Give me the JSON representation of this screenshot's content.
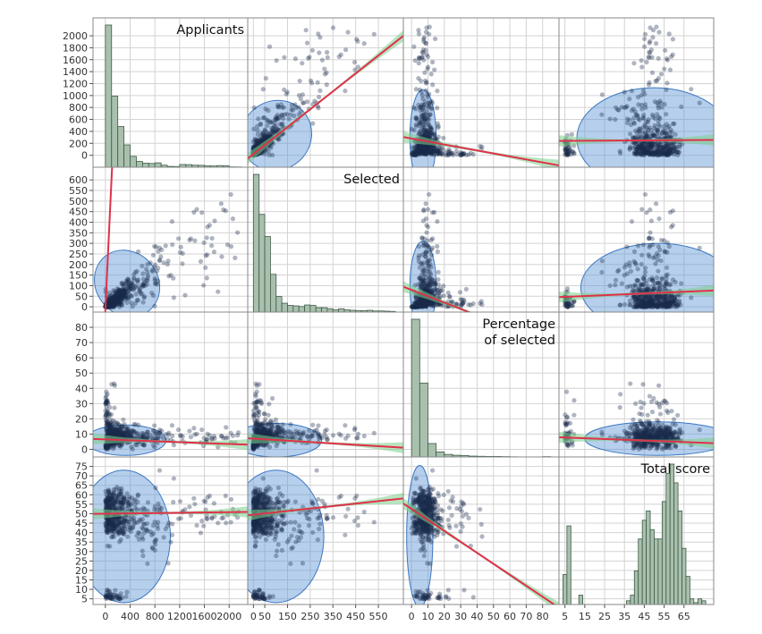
{
  "chart_data": {
    "type": "scatter-matrix",
    "variables": [
      {
        "label": "Applicants",
        "label_lines": [
          "Applicants"
        ],
        "range": [
          -200,
          2300
        ],
        "yticks": [
          0,
          200,
          400,
          600,
          800,
          1000,
          1200,
          1400,
          1600,
          1800,
          2000
        ],
        "xticks": [
          0,
          400,
          800,
          1200,
          1600,
          2000
        ]
      },
      {
        "label": "Selected",
        "label_lines": [
          "Selected"
        ],
        "range": [
          -25,
          660
        ],
        "yticks": [
          0,
          50,
          100,
          150,
          200,
          250,
          300,
          350,
          400,
          450,
          500,
          550,
          600
        ],
        "xticks": [
          0,
          50,
          150,
          250,
          350,
          450,
          550
        ]
      },
      {
        "label": "Percentage of selected",
        "label_lines": [
          "Percentage",
          "of selected"
        ],
        "range": [
          -5,
          90
        ],
        "yticks": [
          0,
          10,
          20,
          30,
          40,
          50,
          60,
          70,
          80
        ],
        "xticks": [
          0,
          10,
          20,
          30,
          40,
          50,
          60,
          70,
          80
        ]
      },
      {
        "label": "Total score",
        "label_lines": [
          "Total score"
        ],
        "range": [
          2,
          80
        ],
        "yticks": [
          5,
          10,
          15,
          20,
          25,
          30,
          35,
          40,
          45,
          50,
          55,
          60,
          65,
          70,
          75
        ],
        "xticks": [
          5,
          15,
          25,
          35,
          45,
          55,
          65
        ]
      }
    ],
    "histograms": [
      {
        "variable": "Applicants",
        "bin_edges": [
          0,
          100,
          200,
          300,
          400,
          500,
          600,
          700,
          800,
          900,
          1000,
          1100,
          1200,
          1300,
          1400,
          1500,
          1600,
          1700,
          1800,
          1900,
          2000,
          2100,
          2200
        ],
        "counts": [
          2100,
          1050,
          600,
          330,
          160,
          85,
          60,
          55,
          65,
          30,
          12,
          10,
          40,
          38,
          30,
          28,
          20,
          18,
          24,
          22,
          5,
          4
        ]
      },
      {
        "variable": "Selected",
        "bin_edges": [
          0,
          25,
          50,
          75,
          100,
          125,
          150,
          175,
          200,
          225,
          250,
          275,
          300,
          325,
          350,
          375,
          400,
          425,
          450,
          475,
          500,
          525,
          550,
          575,
          600,
          625
        ],
        "counts": [
          620,
          440,
          340,
          170,
          70,
          40,
          30,
          28,
          25,
          32,
          30,
          20,
          20,
          15,
          10,
          15,
          10,
          8,
          7,
          6,
          8,
          5,
          5,
          4,
          3
        ]
      },
      {
        "variable": "Percentage of selected",
        "bin_edges": [
          0,
          5,
          10,
          15,
          20,
          25,
          30,
          35,
          40,
          45,
          50,
          55,
          60,
          65,
          70,
          75,
          80,
          85
        ],
        "counts": [
          82,
          44,
          8,
          3,
          1.5,
          1,
          0.8,
          0.5,
          0.4,
          0.3,
          0.3,
          0.2,
          0.1,
          0,
          0,
          0,
          0.2
        ]
      },
      {
        "variable": "Total score",
        "bin_edges": [
          4,
          6,
          8,
          10,
          12,
          14,
          16,
          18,
          20,
          22,
          24,
          26,
          28,
          30,
          32,
          34,
          36,
          38,
          40,
          42,
          44,
          46,
          48,
          50,
          52,
          54,
          56,
          58,
          60,
          62,
          64,
          66,
          68,
          70,
          72,
          74,
          76
        ],
        "counts": [
          16,
          42,
          0,
          0,
          5,
          0,
          0,
          0,
          0,
          0,
          0,
          0,
          0,
          0,
          0,
          0,
          2,
          5,
          18,
          35,
          45,
          50,
          40,
          35,
          35,
          55,
          70,
          75,
          65,
          50,
          30,
          15,
          3,
          1,
          3,
          2
        ]
      }
    ],
    "fit_lines": {
      "Applicants|Selected": [
        -10,
        6.2
      ],
      "Applicants|Percentage of selected": [
        6.5,
        -0.0015
      ],
      "Applicants|Total score": [
        50.0,
        0.0004
      ],
      "Selected|Applicants": [
        20,
        3.0
      ],
      "Selected|Percentage of selected": [
        7.0,
        -0.009
      ],
      "Selected|Total score": [
        49.5,
        0.013
      ],
      "Percentage of selected|Applicants": [
        280,
        -5.0
      ],
      "Percentage of selected|Selected": [
        80,
        -3.0
      ],
      "Percentage of selected|Total score": [
        52.5,
        -0.58
      ],
      "Total score|Applicants": [
        240,
        0.2
      ],
      "Total score|Selected": [
        45,
        0.4
      ],
      "Total score|Percentage of selected": [
        8.0,
        -0.05
      ]
    },
    "density_ellipses": {
      "Applicants|Selected": {
        "center": [
          350,
          110
        ],
        "size": [
          1000,
          330
        ],
        "angle_deg": -40
      },
      "Applicants|Percentage of selected": {
        "center": [
          330,
          6
        ],
        "size": [
          1300,
          20
        ],
        "angle_deg": 0
      },
      "Applicants|Total score": {
        "center": [
          300,
          38
        ],
        "size": [
          1500,
          70
        ],
        "angle_deg": 0
      },
      "Selected|Applicants": {
        "center": [
          100,
          330
        ],
        "size": [
          320,
          1150
        ],
        "angle_deg": -40
      },
      "Selected|Percentage of selected": {
        "center": [
          100,
          6
        ],
        "size": [
          400,
          22
        ],
        "angle_deg": 0
      },
      "Selected|Total score": {
        "center": [
          100,
          38
        ],
        "size": [
          420,
          70
        ],
        "angle_deg": 0
      },
      "Percentage of selected|Applicants": {
        "center": [
          7,
          300
        ],
        "size": [
          16,
          1600
        ],
        "angle_deg": 0
      },
      "Percentage of selected|Selected": {
        "center": [
          7,
          100
        ],
        "size": [
          16,
          420
        ],
        "angle_deg": 0
      },
      "Percentage of selected|Total score": {
        "center": [
          5,
          38
        ],
        "size": [
          16,
          75
        ],
        "angle_deg": 0
      },
      "Total score|Applicants": {
        "center": [
          50,
          280
        ],
        "size": [
          78,
          1700
        ],
        "angle_deg": 0
      },
      "Total score|Selected": {
        "center": [
          52,
          90
        ],
        "size": [
          78,
          420
        ],
        "angle_deg": 0
      },
      "Total score|Percentage of selected": {
        "center": [
          52,
          7
        ],
        "size": [
          74,
          22
        ],
        "angle_deg": 0
      }
    },
    "grid": true,
    "legend": "none"
  },
  "colors": {
    "points": "#1b2c4a",
    "ellipse_fill": "#5b95d6",
    "ellipse_stroke": "#3b78c0",
    "fit_line": "#e0314b",
    "confidence_band": "#7bd08a",
    "histogram_fill": "#a8c0ad",
    "histogram_stroke": "#3e5a47",
    "gridline": "#d3d3d3",
    "panel_border": "#888888"
  }
}
